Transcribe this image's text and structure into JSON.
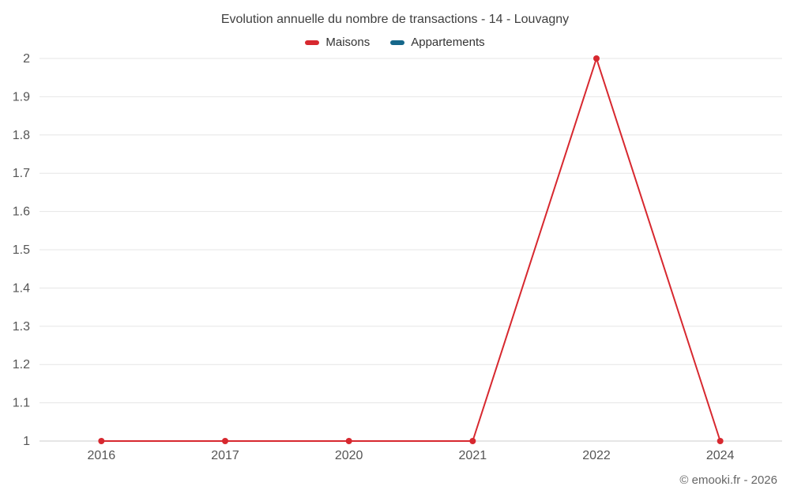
{
  "chart_data": {
    "type": "line",
    "title": "Evolution annuelle du nombre de transactions - 14 - Louvagny",
    "categories": [
      "2016",
      "2017",
      "2020",
      "2021",
      "2022",
      "2024"
    ],
    "series": [
      {
        "name": "Maisons",
        "color": "#d7282f",
        "values": [
          1,
          1,
          1,
          1,
          2,
          1
        ]
      },
      {
        "name": "Appartements",
        "color": "#15678a",
        "values": []
      }
    ],
    "xlabel": "",
    "ylabel": "",
    "ylim": [
      1,
      2
    ],
    "ytick_step": 0.1,
    "grid": "horizontal",
    "legend_position": "top",
    "gridline_color": "#e6e6e6",
    "axis_line_color": "#cccccc",
    "tick_label_color": "#555555"
  },
  "footer": {
    "copyright": "© emooki.fr - 2026"
  }
}
